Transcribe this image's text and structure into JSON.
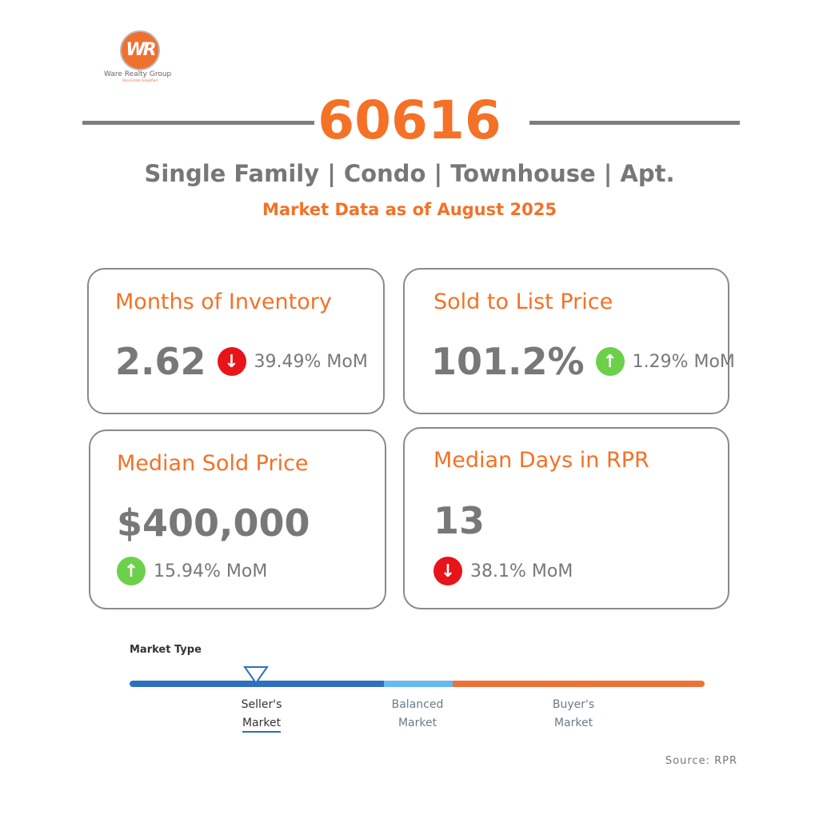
{
  "logo": {
    "initials": "WR",
    "name": "Ware Realty Group",
    "tagline": "Real Estate Simplified"
  },
  "header": {
    "zip": "60616",
    "property_types": "Single Family | Condo | Townhouse | Apt.",
    "as_of": "Market Data as of August 2025"
  },
  "cards": [
    {
      "title": "Months of Inventory",
      "value": "2.62",
      "change": "39.49% MoM",
      "direction": "down"
    },
    {
      "title": "Sold to List Price",
      "value": "101.2%",
      "change": "1.29% MoM",
      "direction": "up"
    },
    {
      "title": "Median Sold Price",
      "value": "$400,000",
      "change": "15.94% MoM",
      "direction": "up"
    },
    {
      "title": "Median Days in RPR",
      "value": "13",
      "change": "38.1% MoM",
      "direction": "down"
    }
  ],
  "market_type": {
    "title": "Market Type",
    "indicator_position": 0.22,
    "selected": "Seller's Market",
    "labels": [
      {
        "line1": "Seller's",
        "line2": "Market"
      },
      {
        "line1": "Balanced",
        "line2": "Market"
      },
      {
        "line1": "Buyer's",
        "line2": "Market"
      }
    ],
    "colors": {
      "sellers": "#2f6fbf",
      "balanced": "#64baf2",
      "buyers": "#ec7338"
    }
  },
  "source": "Source: RPR"
}
